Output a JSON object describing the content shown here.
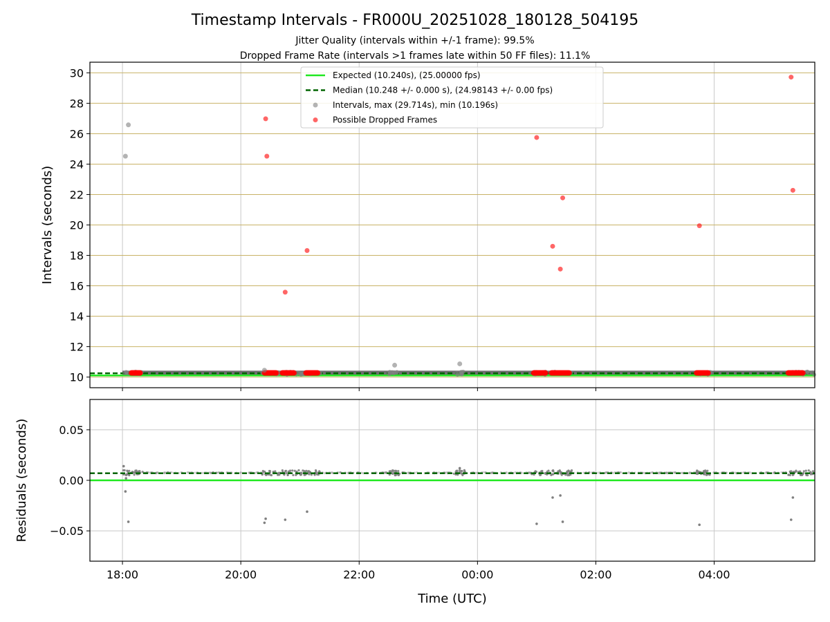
{
  "chart_data": {
    "type": "scatter",
    "title": "Timestamp Intervals - FR000U_20251028_180128_504195",
    "subtitle_jitter": "Jitter Quality (intervals within +/-1 frame): 99.5%",
    "subtitle_dropped": "Dropped Frame Rate (intervals >1 frames late within 50 FF files): 11.1%",
    "xlabel": "Time (UTC)",
    "x_tick_labels": [
      "18:00",
      "20:00",
      "22:00",
      "00:00",
      "02:00",
      "04:00"
    ],
    "x_tick_hours": [
      0,
      2,
      4,
      6,
      8,
      10
    ],
    "xlim_hours": [
      -0.55,
      11.7
    ],
    "top_panel": {
      "ylabel": "Intervals (seconds)",
      "ylim": [
        9.3,
        30.7
      ],
      "y_ticks": [
        10,
        12,
        14,
        16,
        18,
        20,
        22,
        24,
        26,
        28,
        30
      ],
      "y_tick_labels": [
        "10",
        "12",
        "14",
        "16",
        "18",
        "20",
        "22",
        "24",
        "26",
        "28",
        "30"
      ],
      "expected": 10.24,
      "median": 10.248,
      "intervals_outliers": [
        {
          "t": 0.05,
          "v": 24.52
        },
        {
          "t": 0.1,
          "v": 26.58
        },
        {
          "t": 2.4,
          "v": 10.45
        },
        {
          "t": 4.6,
          "v": 10.78
        },
        {
          "t": 5.7,
          "v": 10.87
        }
      ],
      "dropped_frames": [
        {
          "t": 2.42,
          "v": 26.98
        },
        {
          "t": 2.44,
          "v": 24.52
        },
        {
          "t": 2.75,
          "v": 15.58
        },
        {
          "t": 3.12,
          "v": 18.32
        },
        {
          "t": 7.0,
          "v": 25.75
        },
        {
          "t": 7.27,
          "v": 18.6
        },
        {
          "t": 7.4,
          "v": 17.1
        },
        {
          "t": 7.44,
          "v": 21.78
        },
        {
          "t": 9.75,
          "v": 19.95
        },
        {
          "t": 11.3,
          "v": 29.72
        },
        {
          "t": 11.33,
          "v": 22.28
        }
      ],
      "dropped_clusters": [
        {
          "start": 0.15,
          "end": 0.3,
          "v": 10.27
        },
        {
          "start": 2.4,
          "end": 2.6,
          "v": 10.27
        },
        {
          "start": 2.7,
          "end": 2.9,
          "v": 10.27
        },
        {
          "start": 3.1,
          "end": 3.3,
          "v": 10.27
        },
        {
          "start": 6.95,
          "end": 7.15,
          "v": 10.27
        },
        {
          "start": 7.25,
          "end": 7.55,
          "v": 10.27
        },
        {
          "start": 9.7,
          "end": 9.9,
          "v": 10.27
        },
        {
          "start": 11.25,
          "end": 11.5,
          "v": 10.27
        }
      ],
      "legend": [
        "Expected (10.240s), (25.00000 fps)",
        "Median (10.248 +/- 0.000 s), (24.98143 +/- 0.00 fps)",
        "Intervals, max (29.714s), min (10.196s)",
        "Possible Dropped Frames"
      ]
    },
    "bottom_panel": {
      "ylabel": "Residuals (seconds)",
      "ylim": [
        -0.08,
        0.08
      ],
      "y_ticks": [
        -0.05,
        0.0,
        0.05
      ],
      "y_tick_labels": [
        "−0.05",
        "0.00",
        "0.05"
      ],
      "expected": 0.0,
      "median": 0.007,
      "outliers": [
        {
          "t": 0.02,
          "v": 0.014
        },
        {
          "t": 0.05,
          "v": -0.011
        },
        {
          "t": 0.06,
          "v": 0.002
        },
        {
          "t": 0.1,
          "v": -0.041
        },
        {
          "t": 2.4,
          "v": -0.042
        },
        {
          "t": 2.42,
          "v": -0.038
        },
        {
          "t": 2.75,
          "v": -0.039
        },
        {
          "t": 3.12,
          "v": -0.031
        },
        {
          "t": 5.7,
          "v": 0.012
        },
        {
          "t": 7.0,
          "v": -0.043
        },
        {
          "t": 7.27,
          "v": -0.017
        },
        {
          "t": 7.4,
          "v": -0.015
        },
        {
          "t": 7.44,
          "v": -0.041
        },
        {
          "t": 9.75,
          "v": -0.044
        },
        {
          "t": 11.3,
          "v": -0.039
        },
        {
          "t": 11.33,
          "v": -0.017
        }
      ]
    },
    "colors": {
      "expected": "#1fe81f",
      "median": "#006400",
      "intervals": "#808080",
      "dropped": "#ff0000",
      "hgrid_top": "#c8b266",
      "grid": "#c8c8c8",
      "band": "#555555"
    }
  }
}
